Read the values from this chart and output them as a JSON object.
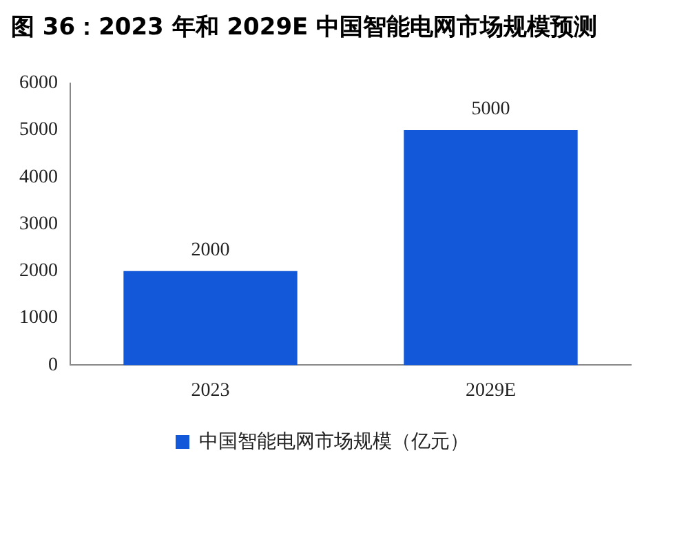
{
  "chart_data": {
    "type": "bar",
    "title": "图 36：2023 年和 2029E 中国智能电网市场规模预测",
    "categories": [
      "2023",
      "2029E"
    ],
    "series": [
      {
        "name": "中国智能电网市场规模（亿元）",
        "color": "#1358d8",
        "values": [
          2000,
          5000
        ]
      }
    ],
    "ylim": [
      0,
      6000
    ],
    "yticks": [
      0,
      1000,
      2000,
      3000,
      4000,
      5000,
      6000
    ],
    "grid": false,
    "legend": "bottom",
    "data_labels": true
  }
}
